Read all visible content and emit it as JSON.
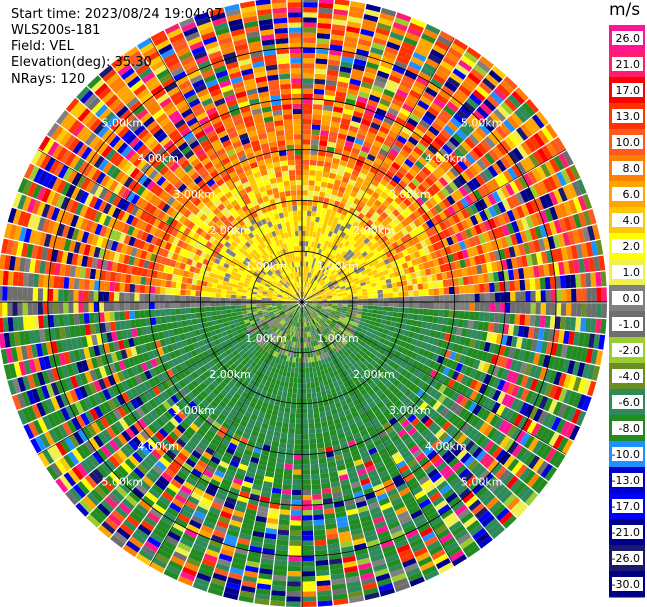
{
  "info": {
    "start_time": "Start time: 2023/08/24 19:04:07",
    "instrument": "WLS200s-181",
    "field": "Field: VEL",
    "elevation": "Elevation(deg): 35.30",
    "nrays": "NRays: 120"
  },
  "chart_data": {
    "type": "heatmap",
    "projection": "ppi-polar",
    "field": "VEL",
    "units": "m/s",
    "elevation_deg": 35.3,
    "n_rays": 120,
    "range_rings_km": [
      1,
      2,
      3,
      4,
      5
    ],
    "ring_labels": [
      "1.00km",
      "2.00km",
      "3.00km",
      "4.00km",
      "5.00km"
    ],
    "max_range_km": 6,
    "colorbar": {
      "title": "m/s",
      "ticks": [
        "26.0",
        "21.0",
        "17.0",
        "13.0",
        "10.0",
        "8.0",
        "6.0",
        "4.0",
        "2.0",
        "1.0",
        "0.0",
        "-1.0",
        "-2.0",
        "-4.0",
        "-6.0",
        "-8.0",
        "-10.0",
        "-13.0",
        "-17.0",
        "-21.0",
        "-26.0",
        "-30.0"
      ],
      "colors": [
        "#ff1493",
        "#ff1e6e",
        "#ff0000",
        "#ff3300",
        "#ff5a1e",
        "#ff8000",
        "#ffa500",
        "#ffc800",
        "#ffff00",
        "#f0f050",
        "#808080",
        "#6e6e6e",
        "#9acd32",
        "#6b8e23",
        "#2e8b57",
        "#228b22",
        "#1e90ff",
        "#0000cd",
        "#0000ff",
        "#00008b",
        "#191970",
        "#000080"
      ]
    }
  }
}
